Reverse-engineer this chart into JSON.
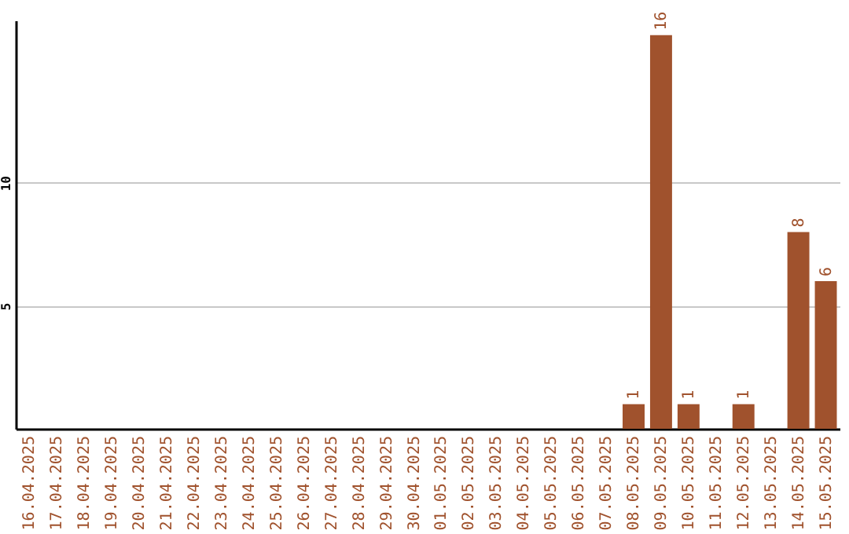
{
  "chart_data": {
    "type": "bar",
    "categories": [
      "16.04.2025",
      "17.04.2025",
      "18.04.2025",
      "19.04.2025",
      "20.04.2025",
      "21.04.2025",
      "22.04.2025",
      "23.04.2025",
      "24.04.2025",
      "25.04.2025",
      "26.04.2025",
      "27.04.2025",
      "28.04.2025",
      "29.04.2025",
      "30.04.2025",
      "01.05.2025",
      "02.05.2025",
      "03.05.2025",
      "04.05.2025",
      "05.05.2025",
      "06.05.2025",
      "07.05.2025",
      "08.05.2025",
      "09.05.2025",
      "10.05.2025",
      "11.05.2025",
      "12.05.2025",
      "13.05.2025",
      "14.05.2025",
      "15.05.2025"
    ],
    "values": [
      0,
      0,
      0,
      0,
      0,
      0,
      0,
      0,
      0,
      0,
      0,
      0,
      0,
      0,
      0,
      0,
      0,
      0,
      0,
      0,
      0,
      0,
      1,
      16,
      1,
      0,
      1,
      0,
      8,
      6
    ],
    "value_labels": [
      null,
      null,
      null,
      null,
      null,
      null,
      null,
      null,
      null,
      null,
      null,
      null,
      null,
      null,
      null,
      null,
      null,
      null,
      null,
      null,
      null,
      null,
      "1",
      "16",
      "1",
      null,
      "1",
      null,
      "8",
      "6"
    ],
    "color": "#a0522d",
    "ylim": [
      0,
      16.6
    ],
    "yticks": [
      5,
      10
    ],
    "grid": "y"
  }
}
